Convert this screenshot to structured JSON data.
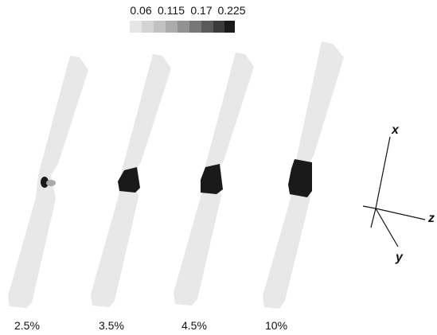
{
  "colorbar": {
    "ticks": [
      "0.06",
      "0.115",
      "0.17",
      "0.225"
    ]
  },
  "specimens": [
    {
      "label": "2.5%"
    },
    {
      "label": "3.5%"
    },
    {
      "label": "4.5%"
    },
    {
      "label": "10%"
    }
  ],
  "axes": {
    "x": "x",
    "y": "y",
    "z": "z"
  }
}
